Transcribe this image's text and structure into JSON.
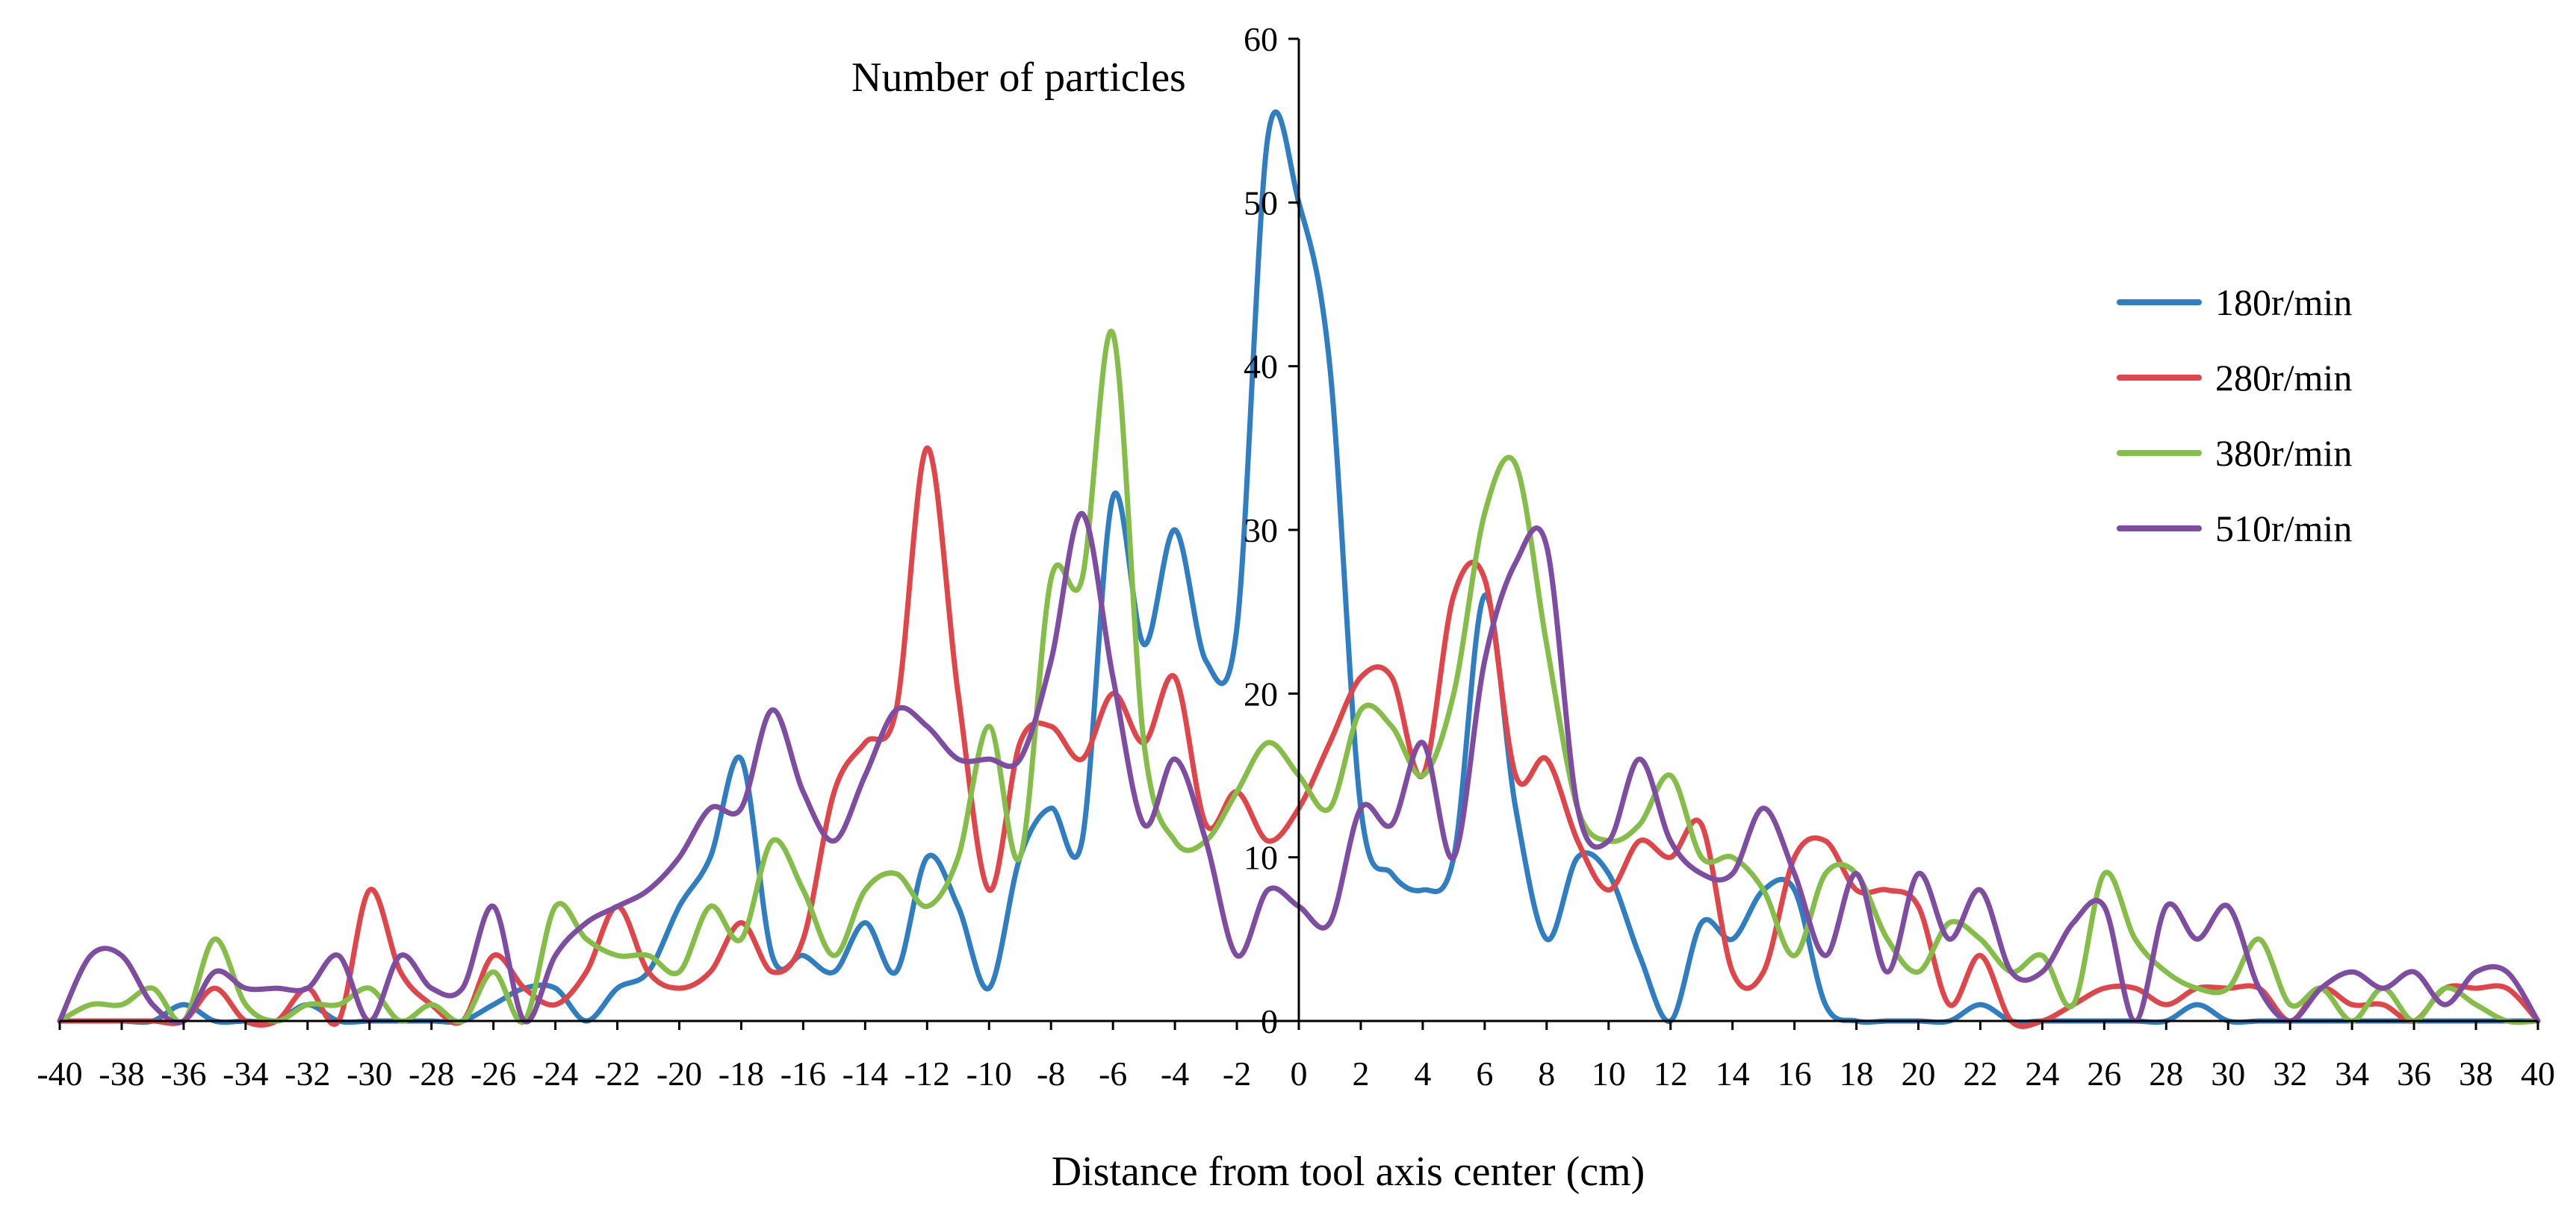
{
  "chart_data": {
    "type": "line",
    "title": "",
    "xlabel": "Distance from tool axis center (cm)",
    "ylabel": "Number of particles",
    "xlim": [
      -40,
      40
    ],
    "ylim": [
      0,
      60
    ],
    "x_ticks": [
      -40,
      -38,
      -36,
      -34,
      -32,
      -30,
      -28,
      -26,
      -24,
      -22,
      -20,
      -18,
      -16,
      -14,
      -12,
      -10,
      -8,
      -6,
      -4,
      -2,
      0,
      2,
      4,
      6,
      8,
      10,
      12,
      14,
      16,
      18,
      20,
      22,
      24,
      26,
      28,
      30,
      32,
      34,
      36,
      38,
      40
    ],
    "y_ticks": [
      0,
      10,
      20,
      30,
      40,
      50,
      60
    ],
    "x_tick_labels": [
      "-40",
      "-38",
      "-36",
      "-34",
      "-32",
      "-30",
      "-28",
      "-26",
      "-24",
      "-22",
      "-20",
      "-18",
      "-16",
      "-14",
      "-12",
      "-10",
      "-8",
      "-6",
      "-4",
      "-2",
      "0",
      "2",
      "4",
      "6",
      "8",
      "10",
      "12",
      "14",
      "16",
      "18",
      "20",
      "22",
      "24",
      "26",
      "28",
      "30",
      "32",
      "34",
      "36",
      "38",
      "40"
    ],
    "y_tick_labels": [
      "0",
      "10",
      "20",
      "30",
      "40",
      "50",
      "60"
    ],
    "legend_position": "right",
    "grid": false,
    "x": [
      -40,
      -39,
      -38,
      -37,
      -36,
      -35,
      -34,
      -33,
      -32,
      -31,
      -30,
      -29,
      -28,
      -27,
      -26,
      -25,
      -24,
      -23,
      -22,
      -21,
      -20,
      -19,
      -18,
      -17,
      -16,
      -15,
      -14,
      -13,
      -12,
      -11,
      -10,
      -9,
      -8,
      -7,
      -6,
      -5,
      -4,
      -3,
      -2,
      -1,
      0,
      1,
      2,
      3,
      4,
      5,
      6,
      7,
      8,
      9,
      10,
      11,
      12,
      13,
      14,
      15,
      16,
      17,
      18,
      19,
      20,
      21,
      22,
      23,
      24,
      25,
      26,
      27,
      28,
      29,
      30,
      31,
      32,
      33,
      34,
      35,
      36,
      37,
      38,
      39,
      40
    ],
    "series": [
      {
        "name": "180r/min",
        "color": "#2E7EC1",
        "values": [
          0,
          0,
          0,
          0,
          1,
          0,
          0,
          0,
          1,
          0,
          0,
          0,
          0,
          0,
          1,
          2,
          2,
          0,
          2,
          3,
          7,
          10,
          16,
          4,
          4,
          3,
          6,
          3,
          10,
          7,
          2,
          10,
          13,
          11,
          32,
          23,
          30,
          22,
          24,
          54,
          50,
          40,
          13,
          9,
          8,
          10,
          26,
          13,
          5,
          10,
          9,
          4,
          0,
          6,
          5,
          8,
          8,
          1,
          0,
          0,
          0,
          0,
          1,
          0,
          0,
          0,
          0,
          0,
          0,
          1,
          0,
          0,
          0,
          0,
          0,
          0,
          0,
          0,
          0,
          0,
          0
        ]
      },
      {
        "name": "280r/min",
        "color": "#E0454A",
        "values": [
          0,
          0,
          0,
          0,
          0,
          2,
          0,
          0,
          2,
          0,
          8,
          3,
          1,
          0,
          4,
          2,
          1,
          3,
          7,
          3,
          2,
          3,
          6,
          3,
          5,
          14,
          17,
          19,
          35,
          20,
          8,
          17,
          18,
          16,
          20,
          17,
          21,
          12,
          14,
          11,
          13,
          17,
          21,
          21,
          15,
          26,
          27,
          15,
          16,
          11,
          8,
          11,
          10,
          12,
          3,
          3,
          10,
          11,
          8,
          8,
          7,
          1,
          4,
          0,
          0,
          1,
          2,
          2,
          1,
          2,
          2,
          2,
          0,
          2,
          1,
          1,
          0,
          2,
          2,
          2,
          0
        ]
      },
      {
        "name": "380r/min",
        "color": "#84BD47",
        "values": [
          0,
          1,
          1,
          2,
          0,
          5,
          1,
          0,
          1,
          1,
          2,
          0,
          1,
          0,
          3,
          0,
          7,
          5,
          4,
          4,
          3,
          7,
          5,
          11,
          8,
          4,
          8,
          9,
          7,
          10,
          18,
          10,
          27,
          27,
          42,
          17,
          11,
          11,
          14,
          17,
          15,
          13,
          19,
          18,
          15,
          20,
          31,
          34,
          23,
          13,
          11,
          12,
          15,
          10,
          10,
          8,
          4,
          9,
          9,
          5,
          3,
          6,
          5,
          3,
          4,
          1,
          9,
          5,
          3,
          2,
          2,
          5,
          1,
          2,
          0,
          2,
          0,
          2,
          1,
          0,
          0
        ]
      },
      {
        "name": "510r/min",
        "color": "#7E4CA1",
        "values": [
          0,
          4,
          4,
          1,
          0,
          3,
          2,
          2,
          2,
          4,
          0,
          4,
          2,
          2,
          7,
          0,
          4,
          6,
          7,
          8,
          10,
          13,
          13,
          19,
          14,
          11,
          15,
          19,
          18,
          16,
          16,
          16,
          22,
          31,
          21,
          12,
          16,
          11,
          4,
          8,
          7,
          6,
          13,
          12,
          17,
          10,
          22,
          28,
          29,
          13,
          11,
          16,
          11,
          9,
          9,
          13,
          9,
          4,
          9,
          3,
          9,
          5,
          8,
          3,
          3,
          6,
          7,
          0,
          7,
          5,
          7,
          2,
          0,
          2,
          3,
          2,
          3,
          1,
          3,
          3,
          0
        ]
      }
    ]
  }
}
